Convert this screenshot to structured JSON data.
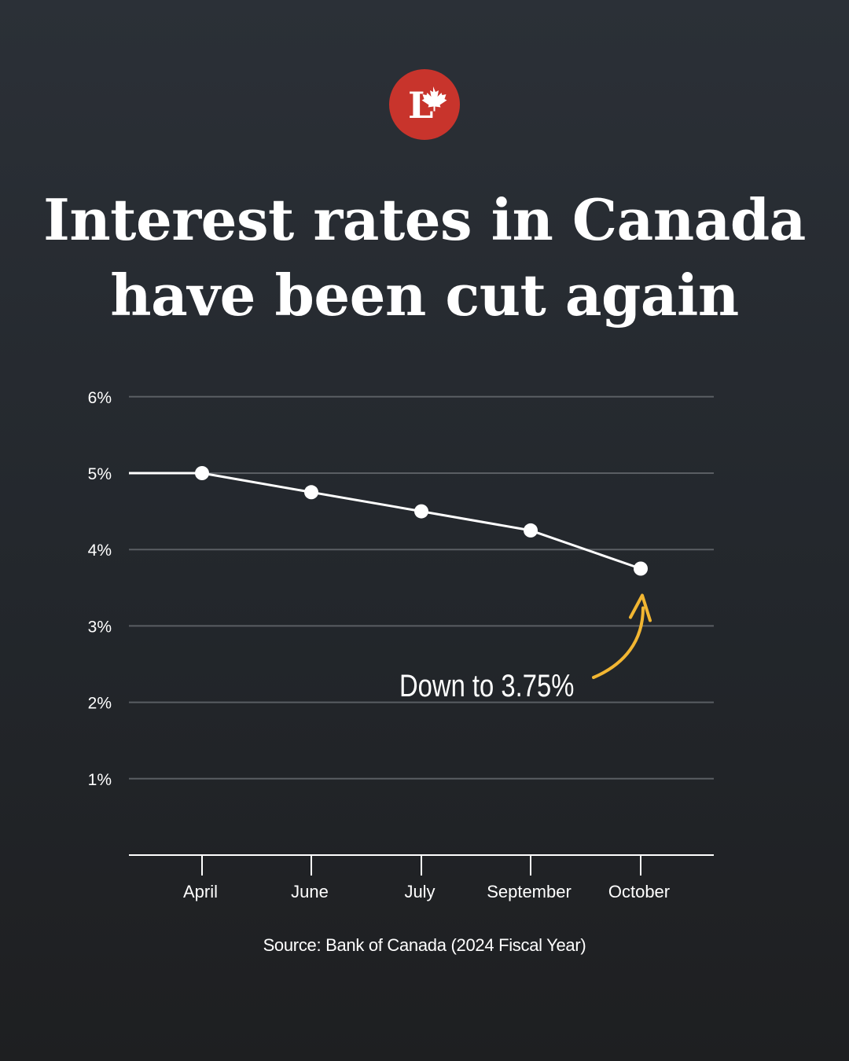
{
  "logo": {
    "letter": "L",
    "icon": "maple-leaf-icon",
    "color": "#c8342c"
  },
  "title": {
    "line1": "Interest rates in Canada",
    "line2": "have been cut again"
  },
  "chart_data": {
    "type": "line",
    "categories": [
      "April",
      "June",
      "July",
      "September",
      "October"
    ],
    "values": [
      5.0,
      4.75,
      4.5,
      4.25,
      3.75
    ],
    "y_tick_labels": [
      "1%",
      "2%",
      "3%",
      "4%",
      "5%",
      "6%"
    ],
    "ylim": [
      0,
      6
    ],
    "grid": true,
    "line_starts_before_first_point": true,
    "annotation": {
      "text": "Down to 3.75%",
      "points_to": "October",
      "arrow_color": "#f2b632"
    },
    "colors": {
      "line": "#ffffff",
      "grid": "#5a5e63",
      "axis": "#ffffff"
    }
  },
  "source": "Source: Bank of Canada (2024 Fiscal Year)"
}
